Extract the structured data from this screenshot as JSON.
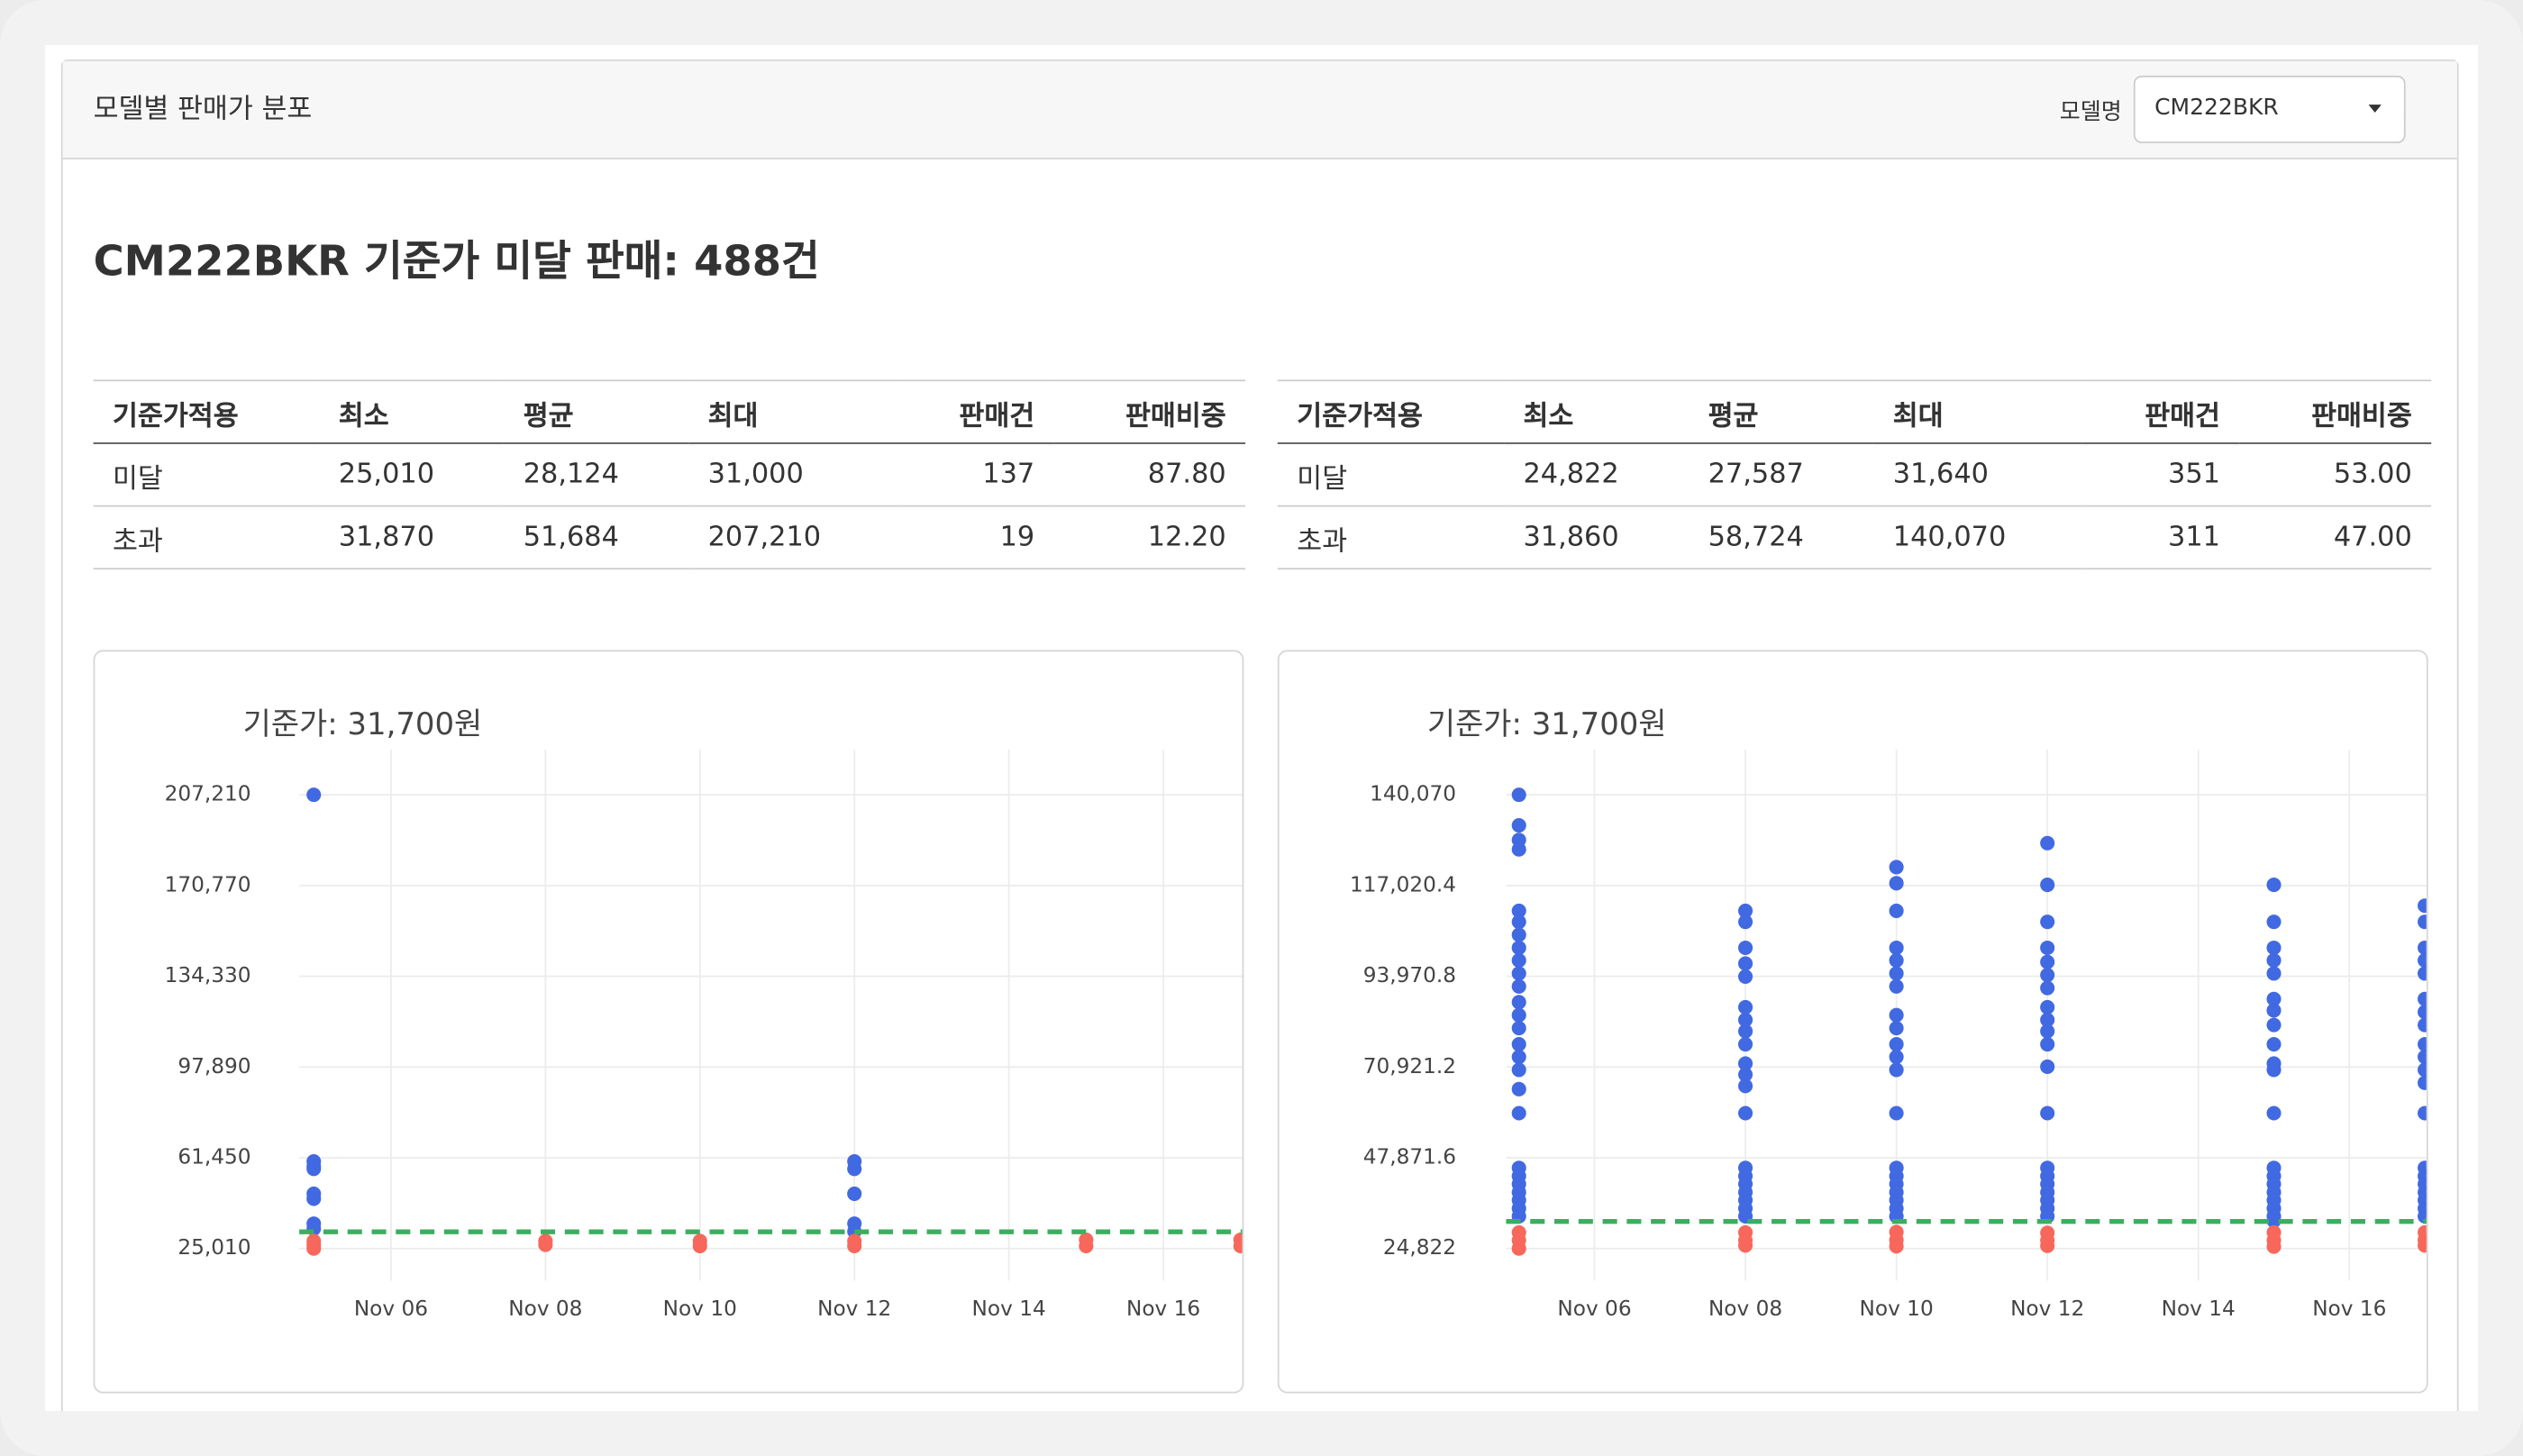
{
  "header": {
    "title": "모델별 판매가 분포",
    "select_label": "모델명",
    "select_value": "CM222BKR"
  },
  "heading": "CM222BKR 기준가 미달 판매: 488건",
  "tables": [
    {
      "columns": [
        "기준가적용",
        "최소",
        "평균",
        "최대",
        "판매건",
        "판매비중"
      ],
      "rows": [
        [
          "미달",
          "25,010",
          "28,124",
          "31,000",
          "137",
          "87.80"
        ],
        [
          "초과",
          "31,870",
          "51,684",
          "207,210",
          "19",
          "12.20"
        ]
      ]
    },
    {
      "columns": [
        "기준가적용",
        "최소",
        "평균",
        "최대",
        "판매건",
        "판매비중"
      ],
      "rows": [
        [
          "미달",
          "24,822",
          "27,587",
          "31,640",
          "351",
          "53.00"
        ],
        [
          "초과",
          "31,860",
          "58,724",
          "140,070",
          "311",
          "47.00"
        ]
      ]
    }
  ],
  "chart_data": [
    {
      "type": "scatter",
      "title": "기준가: 31,700원",
      "xlim": [
        "Nov 05",
        "Nov 17"
      ],
      "xticks": [
        "Nov 06",
        "Nov 08",
        "Nov 10",
        "Nov 12",
        "Nov 14",
        "Nov 16"
      ],
      "ylim": [
        25010,
        207210
      ],
      "yticks": [
        {
          "value": 25010,
          "label": "25,010"
        },
        {
          "value": 61450,
          "label": "61,450"
        },
        {
          "value": 97890,
          "label": "97,890"
        },
        {
          "value": 134330,
          "label": "134,330"
        },
        {
          "value": 170770,
          "label": "170,770"
        },
        {
          "value": 207210,
          "label": "207,210"
        }
      ],
      "grid": true,
      "reference_line": 31700,
      "reference_color": "#3cae5f",
      "series": [
        {
          "color": "#4169e1",
          "x": [
            "Nov 05",
            "Nov 05",
            "Nov 05",
            "Nov 05",
            "Nov 05",
            "Nov 05",
            "Nov 05",
            "Nov 05",
            "Nov 12",
            "Nov 12",
            "Nov 12",
            "Nov 12",
            "Nov 12"
          ],
          "values": [
            207210,
            60000,
            58000,
            57000,
            47000,
            45000,
            35000,
            33000,
            60000,
            57000,
            47000,
            35000,
            31870
          ]
        },
        {
          "color": "#f8675b",
          "x": [
            "Nov 05",
            "Nov 05",
            "Nov 05",
            "Nov 08",
            "Nov 08",
            "Nov 10",
            "Nov 10",
            "Nov 12",
            "Nov 12",
            "Nov 15",
            "Nov 15",
            "Nov 17",
            "Nov 17"
          ],
          "values": [
            25010,
            26500,
            28000,
            26500,
            28000,
            26000,
            28000,
            26000,
            28000,
            26000,
            28500,
            26000,
            28500
          ]
        }
      ]
    },
    {
      "type": "scatter",
      "title": "기준가: 31,700원",
      "xlim": [
        "Nov 05",
        "Nov 17"
      ],
      "xticks": [
        "Nov 06",
        "Nov 08",
        "Nov 10",
        "Nov 12",
        "Nov 14",
        "Nov 16"
      ],
      "ylim": [
        24822,
        140070
      ],
      "yticks": [
        {
          "value": 24822,
          "label": "24,822"
        },
        {
          "value": 47871.6,
          "label": "47,871.6"
        },
        {
          "value": 70921.2,
          "label": "70,921.2"
        },
        {
          "value": 93970.8,
          "label": "93,970.8"
        },
        {
          "value": 117020.4,
          "label": "117,020.4"
        },
        {
          "value": 140070,
          "label": "140,070"
        }
      ],
      "grid": true,
      "reference_line": 31700,
      "reference_color": "#3cae5f",
      "series": [
        {
          "color": "#4169e1",
          "x": [
            "Nov 05",
            "Nov 05",
            "Nov 05",
            "Nov 05",
            "Nov 05",
            "Nov 05",
            "Nov 05",
            "Nov 05",
            "Nov 05",
            "Nov 05",
            "Nov 05",
            "Nov 05",
            "Nov 05",
            "Nov 05",
            "Nov 05",
            "Nov 05",
            "Nov 05",
            "Nov 05",
            "Nov 05",
            "Nov 05",
            "Nov 05",
            "Nov 05",
            "Nov 05",
            "Nov 05",
            "Nov 05",
            "Nov 05",
            "Nov 08",
            "Nov 08",
            "Nov 08",
            "Nov 08",
            "Nov 08",
            "Nov 08",
            "Nov 08",
            "Nov 08",
            "Nov 08",
            "Nov 08",
            "Nov 08",
            "Nov 08",
            "Nov 08",
            "Nov 08",
            "Nov 08",
            "Nov 08",
            "Nov 08",
            "Nov 08",
            "Nov 08",
            "Nov 08",
            "Nov 10",
            "Nov 10",
            "Nov 10",
            "Nov 10",
            "Nov 10",
            "Nov 10",
            "Nov 10",
            "Nov 10",
            "Nov 10",
            "Nov 10",
            "Nov 10",
            "Nov 10",
            "Nov 10",
            "Nov 10",
            "Nov 10",
            "Nov 10",
            "Nov 10",
            "Nov 10",
            "Nov 10",
            "Nov 10",
            "Nov 12",
            "Nov 12",
            "Nov 12",
            "Nov 12",
            "Nov 12",
            "Nov 12",
            "Nov 12",
            "Nov 12",
            "Nov 12",
            "Nov 12",
            "Nov 12",
            "Nov 12",
            "Nov 12",
            "Nov 12",
            "Nov 12",
            "Nov 12",
            "Nov 12",
            "Nov 12",
            "Nov 12",
            "Nov 12",
            "Nov 15",
            "Nov 15",
            "Nov 15",
            "Nov 15",
            "Nov 15",
            "Nov 15",
            "Nov 15",
            "Nov 15",
            "Nov 15",
            "Nov 15",
            "Nov 15",
            "Nov 15",
            "Nov 15",
            "Nov 15",
            "Nov 15",
            "Nov 15",
            "Nov 15",
            "Nov 15",
            "Nov 15",
            "Nov 15",
            "Nov 17",
            "Nov 17",
            "Nov 17",
            "Nov 17",
            "Nov 17",
            "Nov 17",
            "Nov 17",
            "Nov 17",
            "Nov 17",
            "Nov 17",
            "Nov 17",
            "Nov 17",
            "Nov 17",
            "Nov 17",
            "Nov 17",
            "Nov 17",
            "Nov 17",
            "Nov 17",
            "Nov 17",
            "Nov 17"
          ],
          "values": [
            140070,
            132300,
            128600,
            126200,
            110600,
            107800,
            104500,
            101200,
            98000,
            94700,
            91400,
            87400,
            84100,
            80800,
            76700,
            73500,
            70200,
            65300,
            59200,
            45300,
            43200,
            41200,
            39100,
            37100,
            35000,
            33000,
            110600,
            107800,
            101200,
            97200,
            93900,
            86100,
            82900,
            80000,
            76700,
            71800,
            69000,
            66100,
            59200,
            45300,
            43200,
            41200,
            39100,
            37100,
            35000,
            33000,
            121700,
            117600,
            110600,
            101200,
            98000,
            94700,
            91400,
            84100,
            80800,
            76700,
            73500,
            70200,
            59200,
            45300,
            43200,
            41200,
            39100,
            37100,
            35000,
            33000,
            127800,
            117200,
            107800,
            101200,
            97600,
            94300,
            91000,
            86100,
            82900,
            80000,
            76700,
            71000,
            59200,
            45300,
            43200,
            41200,
            39100,
            37100,
            35000,
            33000,
            117200,
            107800,
            101200,
            98000,
            94700,
            88200,
            85300,
            81600,
            76700,
            71800,
            70200,
            59200,
            45300,
            43200,
            41200,
            39100,
            37100,
            35000,
            33000,
            31860,
            111900,
            107800,
            101200,
            98000,
            94700,
            88200,
            84900,
            81600,
            76700,
            73500,
            70200,
            66900,
            59200,
            45300,
            43200,
            41200,
            39100,
            37100,
            35000,
            33000
          ]
        },
        {
          "color": "#f8675b",
          "x": [
            "Nov 05",
            "Nov 05",
            "Nov 05",
            "Nov 08",
            "Nov 08",
            "Nov 08",
            "Nov 10",
            "Nov 10",
            "Nov 10",
            "Nov 12",
            "Nov 12",
            "Nov 12",
            "Nov 15",
            "Nov 15",
            "Nov 15",
            "Nov 17",
            "Nov 17",
            "Nov 17"
          ],
          "values": [
            24822,
            26900,
            28900,
            25600,
            26900,
            28900,
            25400,
            27000,
            29000,
            25500,
            26900,
            28800,
            25300,
            26900,
            28900,
            25600,
            27000,
            28900
          ]
        }
      ]
    }
  ]
}
